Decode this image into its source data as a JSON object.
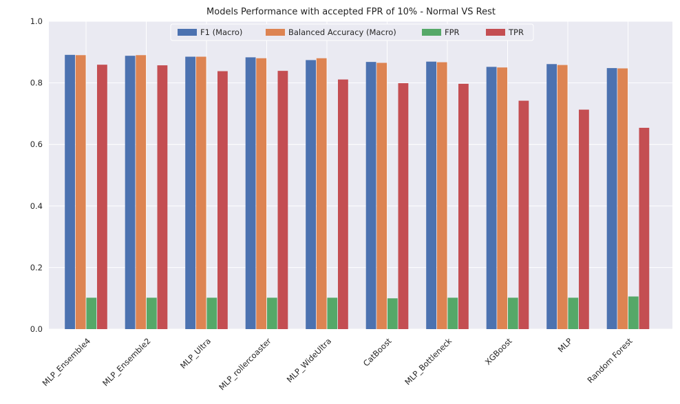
{
  "chart_data": {
    "type": "bar",
    "title": "Models Performance with accepted FPR of 10% - Normal VS Rest",
    "xlabel": "",
    "ylabel": "",
    "ylim": [
      0,
      1.0
    ],
    "yticks": [
      "0.0",
      "0.2",
      "0.4",
      "0.6",
      "0.8",
      "1.0"
    ],
    "grid": true,
    "legend_position": "top-center",
    "categories": [
      "MLP_Ensemble4",
      "MLP_Ensemble2",
      "MLP_Ultra",
      "MLP_rollercoaster",
      "MLP_WideUltra",
      "CatBoost",
      "MLP_Bottleneck",
      "XGBoost",
      "MLP",
      "Random Forest"
    ],
    "series": [
      {
        "name": "F1 (Macro)",
        "color": "#4c72b0",
        "values": [
          0.891,
          0.888,
          0.885,
          0.883,
          0.874,
          0.868,
          0.869,
          0.852,
          0.861,
          0.848
        ]
      },
      {
        "name": "Balanced Accuracy (Macro)",
        "color": "#dd8452",
        "values": [
          0.89,
          0.89,
          0.885,
          0.88,
          0.88,
          0.865,
          0.867,
          0.85,
          0.858,
          0.847
        ]
      },
      {
        "name": "FPR",
        "color": "#55a868",
        "values": [
          0.102,
          0.102,
          0.102,
          0.102,
          0.102,
          0.1,
          0.102,
          0.102,
          0.102,
          0.106
        ]
      },
      {
        "name": "TPR",
        "color": "#c44e52",
        "values": [
          0.859,
          0.857,
          0.838,
          0.839,
          0.811,
          0.799,
          0.797,
          0.742,
          0.713,
          0.654
        ]
      }
    ]
  }
}
